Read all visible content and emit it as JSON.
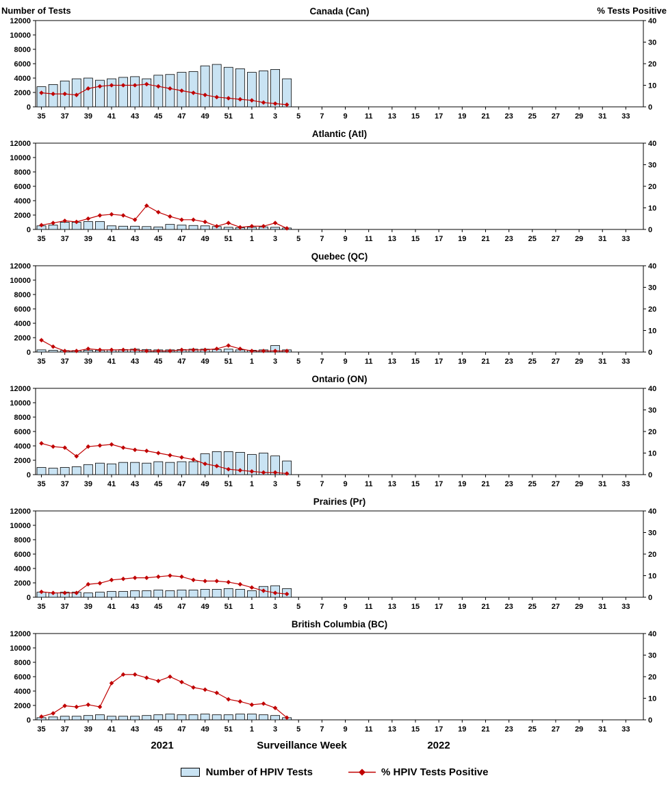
{
  "chart_data": {
    "type": "combo-bar-line-multipanel",
    "left_axis": {
      "label": "Number of Tests",
      "min": 0,
      "max": 12000,
      "step": 2000
    },
    "right_axis": {
      "label": "% Tests Positive",
      "min": 0,
      "max": 40,
      "step": 10
    },
    "x_axis": {
      "label": "Surveillance Week",
      "year_labels": [
        "2021",
        "2022"
      ],
      "n_categories": 52,
      "first_week": 35,
      "weeks_in_2021": 18,
      "tick_labels_2021": [
        "35",
        "37",
        "39",
        "41",
        "43",
        "45",
        "47",
        "49",
        "51"
      ],
      "tick_labels_2022": [
        "1",
        "3",
        "5",
        "7",
        "9",
        "11",
        "13",
        "15",
        "17",
        "19",
        "21",
        "23",
        "25",
        "27",
        "29",
        "31",
        "33"
      ]
    },
    "colors": {
      "bar_fill": "#C9E3F3",
      "bar_stroke": "#000000",
      "line": "#C00000"
    },
    "legend": [
      {
        "label": "Number of HPIV Tests",
        "type": "bar"
      },
      {
        "label": "% HPIV Tests Positive",
        "type": "line"
      }
    ],
    "data_weeks": [
      35,
      36,
      37,
      38,
      39,
      40,
      41,
      42,
      43,
      44,
      45,
      46,
      47,
      48,
      49,
      50,
      51,
      52,
      1,
      2,
      3,
      4
    ],
    "panels": [
      {
        "title": "Canada (Can)",
        "tests": [
          2800,
          3100,
          3600,
          3900,
          4000,
          3700,
          3900,
          4100,
          4200,
          3900,
          4400,
          4500,
          4800,
          4900,
          5700,
          5900,
          5500,
          5300,
          4800,
          5000,
          5200,
          3900
        ],
        "pct_positive": [
          6.5,
          6,
          6,
          5.5,
          8.5,
          9.5,
          10,
          10,
          10,
          10.5,
          9.5,
          8.5,
          7.5,
          6.5,
          5.5,
          4.5,
          4,
          3.5,
          3,
          2,
          1.5,
          1
        ]
      },
      {
        "title": "Atlantic (Atl)",
        "tests": [
          500,
          600,
          1000,
          1000,
          1100,
          1100,
          500,
          450,
          450,
          400,
          350,
          700,
          600,
          550,
          500,
          400,
          300,
          250,
          300,
          350,
          300,
          200
        ],
        "pct_positive": [
          2,
          3,
          4,
          3.5,
          5,
          6.5,
          7,
          6.5,
          4.5,
          11,
          8,
          6,
          4.5,
          4.5,
          3.5,
          1.5,
          3,
          1,
          1.5,
          1.5,
          3,
          0.5
        ]
      },
      {
        "title": "Quebec (QC)",
        "tests": [
          300,
          250,
          200,
          200,
          250,
          250,
          300,
          350,
          400,
          350,
          300,
          300,
          350,
          400,
          400,
          350,
          400,
          300,
          250,
          300,
          900,
          300
        ],
        "pct_positive": [
          5.5,
          2.5,
          0.5,
          0.5,
          1.5,
          1,
          1,
          1,
          1,
          0.5,
          0.5,
          0.5,
          1,
          1,
          1,
          1.5,
          3,
          1.5,
          0.5,
          0.5,
          0.5,
          0.5
        ]
      },
      {
        "title": "Ontario (ON)",
        "tests": [
          1000,
          900,
          1000,
          1100,
          1400,
          1600,
          1500,
          1700,
          1700,
          1600,
          1800,
          1700,
          1800,
          1800,
          2900,
          3200,
          3200,
          3100,
          2800,
          3000,
          2600,
          1900
        ],
        "pct_positive": [
          14.5,
          13,
          12.5,
          8.5,
          13,
          13.5,
          14,
          12.5,
          11.5,
          11,
          10,
          9,
          8,
          7,
          5,
          4,
          2.5,
          2,
          1.5,
          1,
          1,
          0.5
        ]
      },
      {
        "title": "Prairies (Pr)",
        "tests": [
          700,
          600,
          700,
          700,
          600,
          700,
          800,
          800,
          900,
          900,
          1000,
          900,
          1000,
          1000,
          1100,
          1100,
          1200,
          1100,
          900,
          1500,
          1600,
          1200
        ],
        "pct_positive": [
          2.5,
          2,
          2,
          2,
          6,
          6.5,
          8,
          8.5,
          9,
          9,
          9.5,
          10,
          9.5,
          8,
          7.5,
          7.5,
          7,
          6,
          4.5,
          3,
          2,
          1.5
        ]
      },
      {
        "title": "British Columbia (BC)",
        "tests": [
          300,
          400,
          500,
          500,
          600,
          700,
          500,
          500,
          500,
          600,
          700,
          800,
          700,
          700,
          800,
          700,
          700,
          800,
          800,
          700,
          600,
          300
        ],
        "pct_positive": [
          1.5,
          3,
          6.5,
          6,
          7,
          6,
          17,
          21,
          21,
          19.5,
          18,
          20,
          17.5,
          15,
          14,
          12.5,
          9.5,
          8.5,
          7,
          7.5,
          5.5,
          1
        ]
      }
    ]
  }
}
